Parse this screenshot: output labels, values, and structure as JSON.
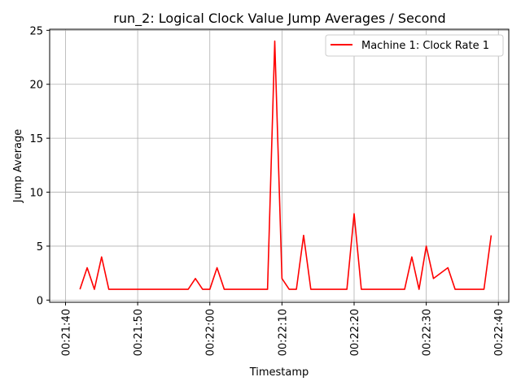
{
  "chart_data": {
    "type": "line",
    "title": "run_2: Logical Clock Value Jump Averages / Second",
    "xlabel": "Timestamp",
    "ylabel": "Jump Average",
    "x_tick_labels": [
      "00:21:40",
      "00:21:50",
      "00:22:00",
      "00:22:10",
      "00:22:20",
      "00:22:30",
      "00:22:40"
    ],
    "y_tick_labels": [
      "0",
      "5",
      "10",
      "15",
      "20",
      "25"
    ],
    "x_ticks": [
      "00:21:40",
      "00:21:50",
      "00:22:00",
      "00:22:10",
      "00:22:20",
      "00:22:30",
      "00:22:40"
    ],
    "y_ticks": [
      0,
      5,
      10,
      15,
      20,
      25
    ],
    "xlim": [
      "00:21:40",
      "00:22:41"
    ],
    "ylim": [
      0,
      25
    ],
    "grid": true,
    "legend_position": "top-right",
    "series": [
      {
        "name": "Machine 1: Clock Rate 1",
        "color": "#ff0000",
        "x": [
          "00:21:42",
          "00:21:43",
          "00:21:44",
          "00:21:45",
          "00:21:46",
          "00:21:47",
          "00:21:48",
          "00:21:49",
          "00:21:50",
          "00:21:51",
          "00:21:52",
          "00:21:53",
          "00:21:54",
          "00:21:55",
          "00:21:56",
          "00:21:57",
          "00:21:58",
          "00:21:59",
          "00:22:00",
          "00:22:01",
          "00:22:02",
          "00:22:03",
          "00:22:04",
          "00:22:05",
          "00:22:06",
          "00:22:07",
          "00:22:08",
          "00:22:09",
          "00:22:10",
          "00:22:11",
          "00:22:12",
          "00:22:13",
          "00:22:14",
          "00:22:15",
          "00:22:16",
          "00:22:17",
          "00:22:18",
          "00:22:19",
          "00:22:20",
          "00:22:21",
          "00:22:22",
          "00:22:23",
          "00:22:24",
          "00:22:25",
          "00:22:26",
          "00:22:27",
          "00:22:28",
          "00:22:29",
          "00:22:30",
          "00:22:31",
          "00:22:32",
          "00:22:33",
          "00:22:34",
          "00:22:35",
          "00:22:36",
          "00:22:37",
          "00:22:38",
          "00:22:39"
        ],
        "y": [
          1,
          3,
          1,
          4,
          1,
          1,
          1,
          1,
          1,
          1,
          1,
          1,
          1,
          1,
          1,
          1,
          2,
          1,
          1,
          3,
          1,
          1,
          1,
          1,
          1,
          1,
          1,
          24,
          2,
          1,
          1,
          6,
          1,
          1,
          1,
          1,
          1,
          1,
          8,
          1,
          1,
          1,
          1,
          1,
          1,
          1,
          4,
          1,
          5,
          2,
          2.5,
          3,
          1,
          1,
          1,
          1,
          1,
          6
        ]
      }
    ]
  }
}
